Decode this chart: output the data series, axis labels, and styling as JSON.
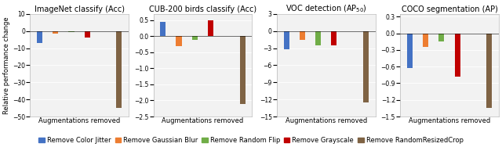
{
  "subplots": [
    {
      "title": "ImageNet classify (Acc)",
      "xlabel": "Augmentations removed",
      "values": [
        -7.0,
        -1.5,
        -0.5,
        -4.0,
        -45.0
      ],
      "ylim": [
        -50,
        10
      ],
      "yticks": [
        10,
        0,
        -10,
        -20,
        -30,
        -40,
        -50
      ]
    },
    {
      "title": "CUB-200 birds classify (Acc)",
      "xlabel": "Augmentations removed",
      "values": [
        0.45,
        -0.3,
        -0.1,
        0.5,
        -2.1
      ],
      "ylim": [
        -2.5,
        0.7
      ],
      "yticks": [
        0.5,
        0,
        -0.5,
        -1.0,
        -1.5,
        -2.0,
        -2.5
      ]
    },
    {
      "title": "VOC detection (AP$_{50}$)",
      "xlabel": "Augmentations removed",
      "values": [
        -3.2,
        -1.5,
        -2.5,
        -2.5,
        -12.5
      ],
      "ylim": [
        -15,
        3
      ],
      "yticks": [
        3,
        0,
        -3,
        -6,
        -9,
        -12,
        -15
      ]
    },
    {
      "title": "COCO segmentation (AP)",
      "xlabel": "Augmentations removed",
      "values": [
        -0.63,
        -0.25,
        -0.15,
        -0.78,
        -1.35
      ],
      "ylim": [
        -1.5,
        0.35
      ],
      "yticks": [
        0.3,
        0,
        -0.3,
        -0.6,
        -0.9,
        -1.2,
        -1.5
      ]
    }
  ],
  "bar_colors": [
    "#4472c4",
    "#ed7d31",
    "#70ad47",
    "#c00000",
    "#7f6344"
  ],
  "legend_labels": [
    "Remove Color Jitter",
    "Remove Gaussian Blur",
    "Remove Random Flip",
    "Remove Grayscale",
    "Remove RandomResizedCrop"
  ],
  "ylabel": "Relative performance change",
  "background_color": "#f2f2f2",
  "title_fontsize": 7.0,
  "axis_fontsize": 6.0,
  "tick_fontsize": 5.5,
  "legend_fontsize": 6.0,
  "bar_width": 0.35
}
